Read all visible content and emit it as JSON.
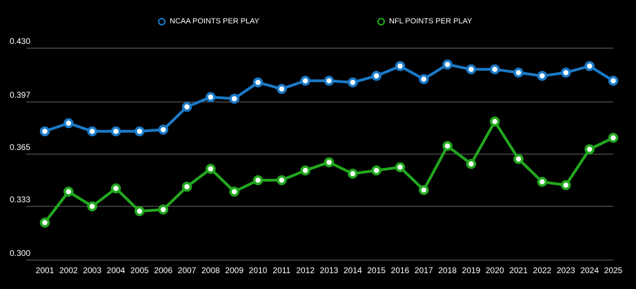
{
  "chart_data": {
    "type": "line",
    "title": "",
    "xlabel": "",
    "ylabel": "",
    "ylim": [
      0.3,
      0.43
    ],
    "yticks": [
      "0.430",
      "0.397",
      "0.365",
      "0.333",
      "0.300"
    ],
    "ytick_values": [
      0.43,
      0.397,
      0.365,
      0.333,
      0.3
    ],
    "grid": true,
    "legend_position": "top-center",
    "categories": [
      "2001",
      "2002",
      "2003",
      "2004",
      "2005",
      "2006",
      "2007",
      "2008",
      "2009",
      "2010",
      "2011",
      "2012",
      "2013",
      "2014",
      "2015",
      "2016",
      "2017",
      "2018",
      "2019",
      "2020",
      "2021",
      "2022",
      "2023",
      "2024",
      "2025"
    ],
    "series": [
      {
        "name": "NCAA POINTS PER PLAY",
        "color": "#1a7ac8",
        "values": [
          0.379,
          0.384,
          0.379,
          0.379,
          0.379,
          0.38,
          0.394,
          0.4,
          0.399,
          0.409,
          0.405,
          0.41,
          0.41,
          0.409,
          0.413,
          0.419,
          0.411,
          0.42,
          0.417,
          0.417,
          0.415,
          0.413,
          0.415,
          0.419,
          0.41
        ]
      },
      {
        "name": "NFL POINTS PER PLAY",
        "color": "#22a81e",
        "values": [
          0.323,
          0.342,
          0.333,
          0.344,
          0.33,
          0.331,
          0.345,
          0.356,
          0.342,
          0.349,
          0.349,
          0.355,
          0.36,
          0.353,
          0.355,
          0.357,
          0.343,
          0.37,
          0.359,
          0.385,
          0.362,
          0.348,
          0.346,
          0.368,
          0.375
        ]
      }
    ]
  }
}
